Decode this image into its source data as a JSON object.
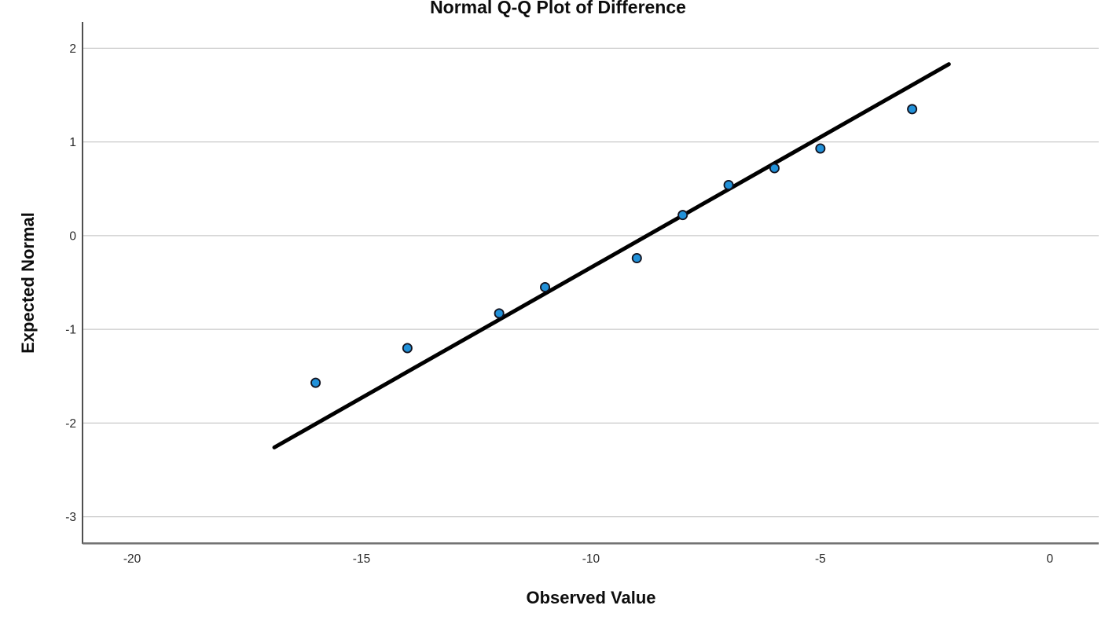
{
  "page": {
    "background": "#ffffff"
  },
  "chart_data": {
    "type": "scatter",
    "title": "Normal Q-Q Plot of Difference",
    "xlabel": "Observed Value",
    "ylabel": "Expected Normal",
    "x_ticks": [
      -20,
      -15,
      -10,
      -5,
      0
    ],
    "y_ticks": [
      2,
      1,
      0,
      -1,
      -2,
      -3
    ],
    "xlim": [
      -21.08,
      1.1
    ],
    "ylim": [
      -3.28,
      2.28
    ],
    "grid": "horizontal-gridlines-only",
    "legend": "none",
    "points": [
      {
        "x": -16,
        "y": -1.57
      },
      {
        "x": -14,
        "y": -1.2
      },
      {
        "x": -12,
        "y": -0.83
      },
      {
        "x": -11,
        "y": -0.55
      },
      {
        "x": -9,
        "y": -0.24
      },
      {
        "x": -8,
        "y": 0.22
      },
      {
        "x": -7,
        "y": 0.54
      },
      {
        "x": -6,
        "y": 0.72
      },
      {
        "x": -5,
        "y": 0.93
      },
      {
        "x": -3,
        "y": 1.35
      }
    ],
    "fit_line": {
      "x1": -16.9,
      "y1": -2.26,
      "x2": -2.2,
      "y2": 1.83
    },
    "colors": {
      "point_fill": "#2191d9",
      "point_stroke": "#12121e",
      "fit_line": "#000000",
      "grid_line": "#c9c9c9",
      "y_axis": "#4f4f4f",
      "x_axis": "#6e6e6e",
      "tick_label": "#2b2b2b",
      "title": "#0d0d0d"
    }
  }
}
